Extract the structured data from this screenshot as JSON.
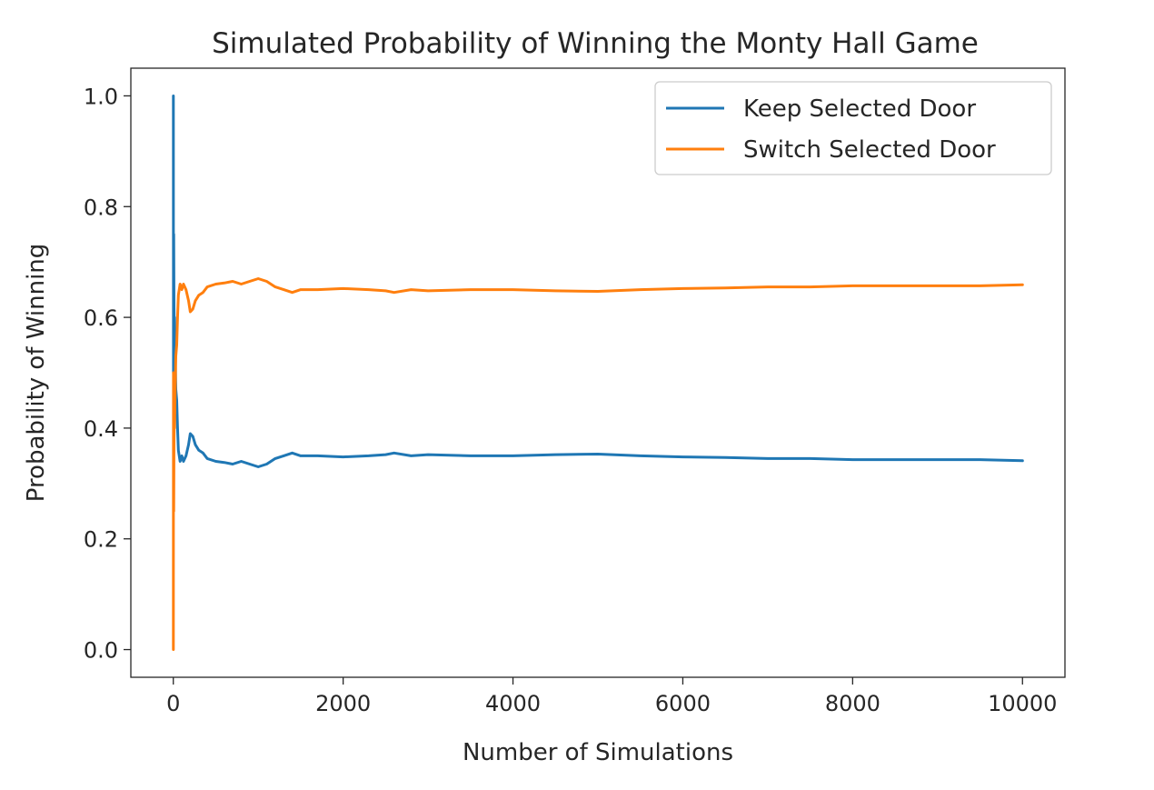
{
  "chart_data": {
    "type": "line",
    "title": "Simulated Probability of Winning the Monty Hall Game",
    "xlabel": "Number of Simulations",
    "ylabel": "Probability of Winning",
    "xlim": [
      -500,
      10500
    ],
    "ylim": [
      -0.05,
      1.05
    ],
    "xticks": [
      0,
      2000,
      4000,
      6000,
      8000,
      10000
    ],
    "xtick_labels": [
      "0",
      "2000",
      "4000",
      "6000",
      "8000",
      "10000"
    ],
    "yticks": [
      0.0,
      0.2,
      0.4,
      0.6,
      0.8,
      1.0
    ],
    "ytick_labels": [
      "0.0",
      "0.2",
      "0.4",
      "0.6",
      "0.8",
      "1.0"
    ],
    "grid": false,
    "legend_position": "top-right",
    "series": [
      {
        "name": "Keep Selected Door",
        "color": "#1f77b4",
        "x": [
          1,
          2,
          3,
          5,
          8,
          10,
          15,
          20,
          30,
          40,
          50,
          60,
          80,
          100,
          120,
          150,
          180,
          200,
          230,
          260,
          300,
          350,
          400,
          500,
          600,
          700,
          800,
          900,
          1000,
          1100,
          1200,
          1300,
          1400,
          1500,
          1700,
          2000,
          2300,
          2500,
          2600,
          2800,
          3000,
          3500,
          4000,
          4500,
          5000,
          5500,
          6000,
          6500,
          7000,
          7500,
          8000,
          8500,
          9000,
          9500,
          10000
        ],
        "y": [
          1.0,
          0.5,
          0.67,
          0.75,
          0.62,
          0.6,
          0.6,
          0.55,
          0.47,
          0.45,
          0.4,
          0.36,
          0.34,
          0.35,
          0.34,
          0.35,
          0.37,
          0.39,
          0.385,
          0.37,
          0.36,
          0.355,
          0.345,
          0.34,
          0.338,
          0.335,
          0.34,
          0.335,
          0.33,
          0.335,
          0.345,
          0.35,
          0.355,
          0.35,
          0.35,
          0.348,
          0.35,
          0.352,
          0.355,
          0.35,
          0.352,
          0.35,
          0.35,
          0.352,
          0.353,
          0.35,
          0.348,
          0.347,
          0.345,
          0.345,
          0.343,
          0.343,
          0.343,
          0.343,
          0.341
        ]
      },
      {
        "name": "Switch Selected Door",
        "color": "#ff7f0e",
        "x": [
          1,
          2,
          3,
          5,
          8,
          10,
          15,
          20,
          30,
          40,
          50,
          60,
          80,
          100,
          120,
          150,
          180,
          200,
          230,
          260,
          300,
          350,
          400,
          500,
          600,
          700,
          800,
          900,
          1000,
          1100,
          1200,
          1300,
          1400,
          1500,
          1700,
          2000,
          2300,
          2500,
          2600,
          2800,
          3000,
          3500,
          4000,
          4500,
          5000,
          5500,
          6000,
          6500,
          7000,
          7500,
          8000,
          8500,
          9000,
          9500,
          10000
        ],
        "y": [
          0.0,
          0.5,
          0.33,
          0.25,
          0.38,
          0.4,
          0.4,
          0.45,
          0.53,
          0.55,
          0.6,
          0.64,
          0.66,
          0.65,
          0.66,
          0.65,
          0.63,
          0.61,
          0.615,
          0.63,
          0.64,
          0.645,
          0.655,
          0.66,
          0.662,
          0.665,
          0.66,
          0.665,
          0.67,
          0.665,
          0.655,
          0.65,
          0.645,
          0.65,
          0.65,
          0.652,
          0.65,
          0.648,
          0.645,
          0.65,
          0.648,
          0.65,
          0.65,
          0.648,
          0.647,
          0.65,
          0.652,
          0.653,
          0.655,
          0.655,
          0.657,
          0.657,
          0.657,
          0.657,
          0.659
        ]
      }
    ]
  }
}
